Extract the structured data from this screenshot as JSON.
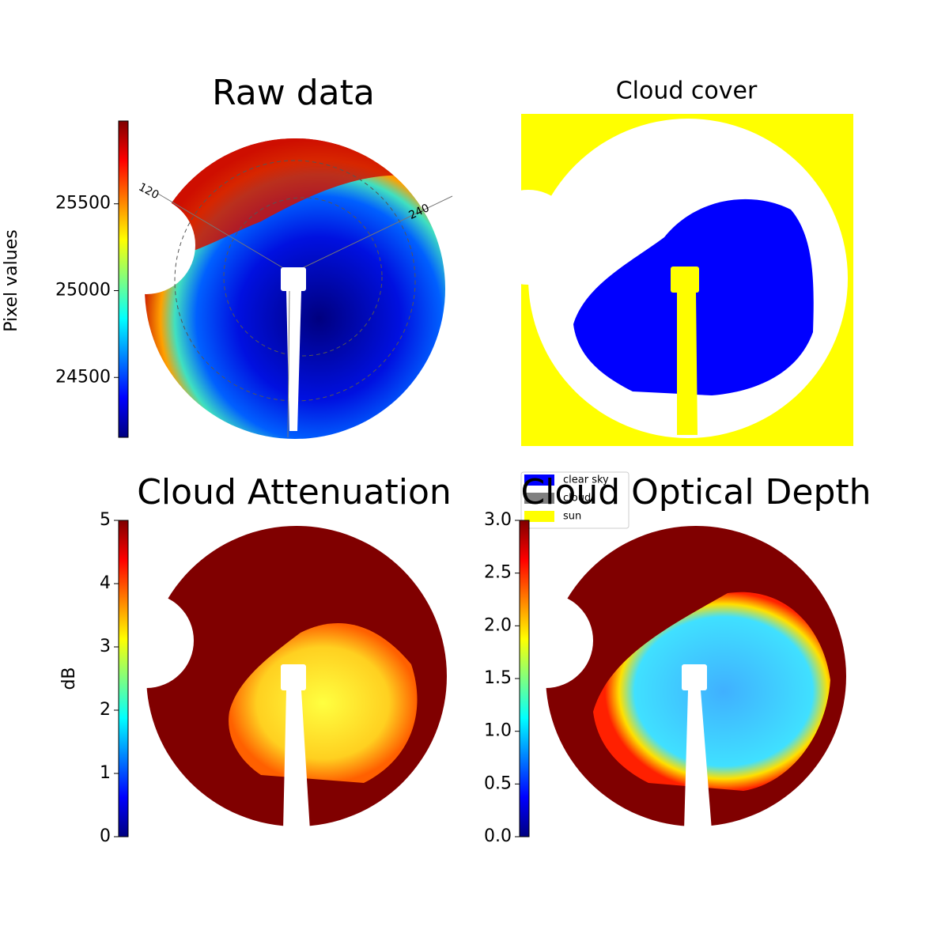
{
  "chart_data": [
    {
      "type": "image",
      "title": "Raw data",
      "ylabel": "Pixel values",
      "ylim": [
        24155,
        25977
      ],
      "yticks": [
        24500,
        25000,
        25500
      ],
      "colormap": "jet",
      "annotations": [
        "120",
        "240"
      ]
    },
    {
      "type": "image",
      "title": "Cloud cover",
      "legend": [
        {
          "name": "clear sky",
          "color": "#0000ff"
        },
        {
          "name": "cloud",
          "color": "#808080"
        },
        {
          "name": "sun",
          "color": "#ffff00"
        }
      ]
    },
    {
      "type": "image",
      "title": "Cloud Attenuation",
      "ylabel": "dB",
      "ylim": [
        0,
        5
      ],
      "yticks": [
        0,
        1,
        2,
        3,
        4,
        5
      ],
      "colormap": "jet"
    },
    {
      "type": "image",
      "title": "Cloud Optical Depth",
      "ylim": [
        0,
        3
      ],
      "yticks": [
        {
          "value": 0,
          "label": "0.0"
        },
        {
          "value": 0.5,
          "label": "0.5"
        },
        {
          "value": 1,
          "label": "1.0"
        },
        {
          "value": 1.5,
          "label": "1.5"
        },
        {
          "value": 2,
          "label": "2.0"
        },
        {
          "value": 2.5,
          "label": "2.5"
        },
        {
          "value": 3,
          "label": "3.0"
        }
      ],
      "colormap": "jet"
    }
  ]
}
